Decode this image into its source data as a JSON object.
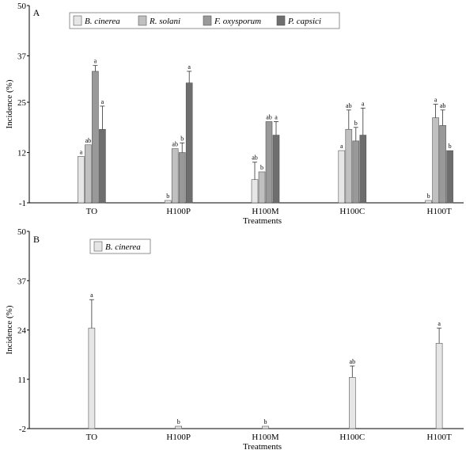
{
  "chart_data": [
    {
      "type": "bar",
      "panel_label": "A",
      "xlabel": "Treatments",
      "ylabel": "Incidence (%)",
      "ylim": [
        -1,
        50
      ],
      "yticks": [
        "-1",
        "12",
        "25",
        "37",
        "50"
      ],
      "categories": [
        "TO",
        "H100P",
        "H100M",
        "H100C",
        "H100T"
      ],
      "legend_position": "top",
      "series": [
        {
          "name": "B. cinerea",
          "color": "#e6e6e6",
          "values": [
            11,
            0,
            5,
            12.5,
            0
          ],
          "errors": [
            0,
            0,
            4.5,
            0,
            0
          ],
          "labels": [
            "a",
            "b",
            "ab",
            "a",
            "b"
          ]
        },
        {
          "name": "R. solani",
          "color": "#c0c0c0",
          "values": [
            14,
            13,
            7,
            18,
            21
          ],
          "errors": [
            0,
            0,
            0,
            5,
            3.5
          ],
          "labels": [
            "ab",
            "ab",
            "b",
            "ab",
            "a"
          ]
        },
        {
          "name": "F. oxysporum",
          "color": "#999999",
          "values": [
            33,
            12,
            20,
            15,
            19
          ],
          "errors": [
            1.5,
            2.5,
            0,
            3.5,
            4
          ],
          "labels": [
            "a",
            "b",
            "ab",
            "b",
            "ab"
          ]
        },
        {
          "name": "P. capsici",
          "color": "#6e6e6e",
          "values": [
            18,
            30,
            16.5,
            16.5,
            12.5
          ],
          "errors": [
            6,
            3,
            3.5,
            7,
            0
          ],
          "labels": [
            "a",
            "a",
            "a",
            "a",
            "b"
          ]
        }
      ]
    },
    {
      "type": "bar",
      "panel_label": "B",
      "xlabel": "Treatments",
      "ylabel": "Incidence  (%)",
      "ylim": [
        -2,
        50
      ],
      "yticks": [
        "-2",
        "11",
        "24",
        "37",
        "50"
      ],
      "categories": [
        "TO",
        "H100P",
        "H100M",
        "H100C",
        "H100T"
      ],
      "legend_position": "top-left",
      "series": [
        {
          "name": "B. cinerea",
          "color": "#e6e6e6",
          "values": [
            24.5,
            0,
            0,
            11.5,
            20.5
          ],
          "errors": [
            7.5,
            0,
            0,
            3,
            4
          ],
          "labels": [
            "a",
            "b",
            "b",
            "ab",
            "a"
          ]
        }
      ]
    }
  ]
}
